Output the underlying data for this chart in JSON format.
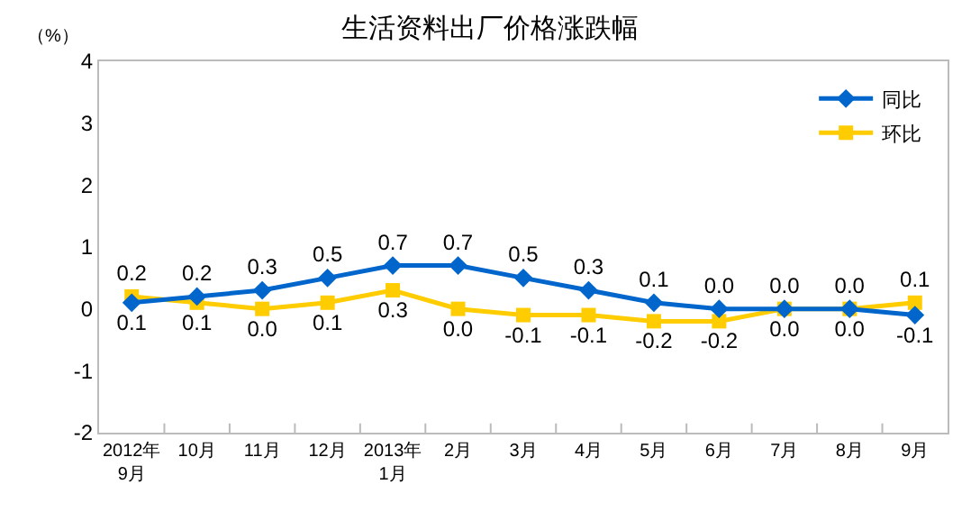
{
  "chart_data": {
    "type": "line",
    "title": "生活资料出厂价格涨跌幅",
    "ylabel": "（%）",
    "categories": [
      "2012年\n9月",
      "10月",
      "11月",
      "12月",
      "2013年\n1月",
      "2月",
      "3月",
      "4月",
      "5月",
      "6月",
      "7月",
      "8月",
      "9月"
    ],
    "series": [
      {
        "name": "同比",
        "color": "#0066cc",
        "marker": "diamond",
        "values": [
          0.1,
          0.2,
          0.3,
          0.5,
          0.7,
          0.7,
          0.5,
          0.3,
          0.1,
          0.0,
          0.0,
          0.0,
          -0.1
        ],
        "value_labels": [
          "0.1",
          "0.2",
          "0.3",
          "0.5",
          "0.7",
          "0.7",
          "0.5",
          "0.3",
          "0.1",
          "0.0",
          "0.0",
          "0.0",
          "-0.1"
        ]
      },
      {
        "name": "环比",
        "color": "#ffcc00",
        "marker": "square",
        "values": [
          0.2,
          0.1,
          0.0,
          0.1,
          0.3,
          0.0,
          -0.1,
          -0.1,
          -0.2,
          -0.2,
          0.0,
          0.0,
          0.1
        ],
        "value_labels": [
          "0.2",
          "0.1",
          "0.0",
          "0.1",
          "0.3",
          "0.0",
          "-0.1",
          "-0.1",
          "-0.2",
          "-0.2",
          "0.0",
          "0.0",
          "0.1"
        ]
      }
    ],
    "ylim": [
      -2,
      4
    ],
    "yticks": [
      -2,
      -1,
      0,
      1,
      2,
      3,
      4
    ],
    "grid": false,
    "legend": "top right",
    "line_style": "solid"
  }
}
